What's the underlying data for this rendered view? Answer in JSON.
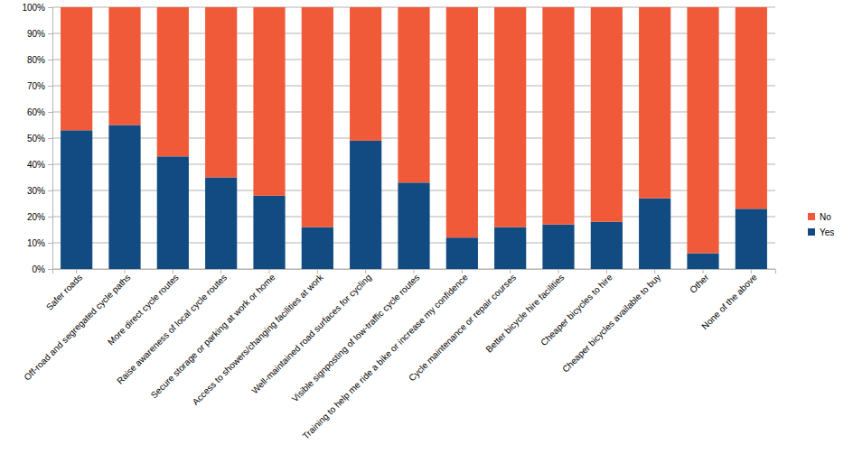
{
  "chart_data": {
    "type": "bar",
    "stacked": true,
    "grid": true,
    "legend": "right",
    "categories": [
      "Safer roads",
      "Off-road and segregated cycle paths",
      "More direct cycle routes",
      "Raise awareness of local cycle routes",
      "Secure storage or parking at work or home",
      "Access to showers/changing facilities at work",
      "Well-maintained road surfaces for cycling",
      "Visible signposting of low-traffic cycle routes",
      "Training to help me ride a bike or increase my confidence",
      "Cycle maintenance or repair courses",
      "Better bicycle hire facilities",
      "Cheaper bicycles to hire",
      "Cheaper bicycles available to buy",
      "Other",
      "None of the above"
    ],
    "series": [
      {
        "name": "Yes",
        "color": "#114b81",
        "values": [
          53,
          55,
          43,
          35,
          28,
          16,
          49,
          33,
          12,
          16,
          17,
          18,
          27,
          6,
          23
        ]
      },
      {
        "name": "No",
        "color": "#f15a38",
        "values": [
          47,
          45,
          57,
          65,
          72,
          84,
          51,
          67,
          88,
          84,
          83,
          82,
          73,
          94,
          77
        ]
      }
    ],
    "ylim": [
      0,
      100
    ],
    "yticks": [
      {
        "value": 0,
        "label": "0%"
      },
      {
        "value": 10,
        "label": "10%"
      },
      {
        "value": 20,
        "label": "20%"
      },
      {
        "value": 30,
        "label": "30%"
      },
      {
        "value": 40,
        "label": "40%"
      },
      {
        "value": 50,
        "label": "50%"
      },
      {
        "value": 60,
        "label": "60%"
      },
      {
        "value": 70,
        "label": "70%"
      },
      {
        "value": 80,
        "label": "80%"
      },
      {
        "value": 90,
        "label": "90%"
      },
      {
        "value": 100,
        "label": "100%"
      }
    ]
  }
}
